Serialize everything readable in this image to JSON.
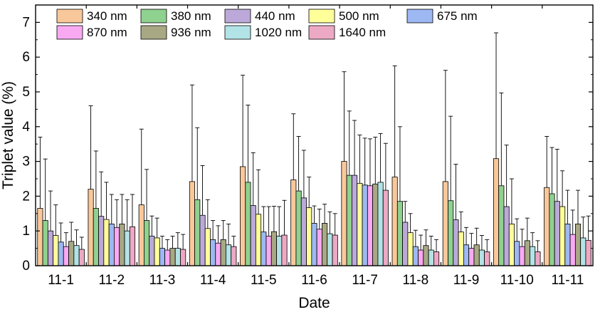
{
  "chart_data": {
    "type": "bar",
    "xlabel": "Date",
    "ylabel": "Triplet value (%)",
    "ylim": [
      0,
      7.5
    ],
    "yticks": [
      0,
      1,
      2,
      3,
      4,
      5,
      6,
      7
    ],
    "categories": [
      "11-1",
      "11-2",
      "11-3",
      "11-4",
      "11-5",
      "11-6",
      "11-7",
      "11-8",
      "11-9",
      "11-10",
      "11-11"
    ],
    "error_bars": "upper, one-sided",
    "legend_position": "top (inside plot area)",
    "series": [
      {
        "name": "340 nm",
        "color": "#F9C89A",
        "values": [
          1.65,
          2.2,
          1.75,
          2.42,
          2.85,
          2.47,
          3.0,
          2.55,
          2.42,
          3.08,
          2.25
        ],
        "errors": [
          2.05,
          2.4,
          2.18,
          2.78,
          2.63,
          1.9,
          2.58,
          3.2,
          3.2,
          3.62,
          1.47
        ]
      },
      {
        "name": "380 nm",
        "color": "#8FD18F",
        "values": [
          1.3,
          1.65,
          1.3,
          1.9,
          2.4,
          2.15,
          2.6,
          1.85,
          1.87,
          2.3,
          2.07
        ],
        "errors": [
          1.77,
          1.65,
          1.47,
          2.07,
          2.22,
          1.57,
          1.85,
          2.15,
          2.43,
          2.67,
          1.33
        ]
      },
      {
        "name": "440 nm",
        "color": "#BCA9D9",
        "values": [
          1.0,
          1.42,
          0.85,
          1.45,
          1.73,
          1.95,
          2.6,
          1.25,
          1.32,
          1.7,
          1.85
        ],
        "errors": [
          1.15,
          1.28,
          0.58,
          1.43,
          1.52,
          1.37,
          1.58,
          0.6,
          1.6,
          1.77,
          1.5
        ]
      },
      {
        "name": "500 nm",
        "color": "#FFFF99",
        "values": [
          0.87,
          1.33,
          0.8,
          1.07,
          1.48,
          1.67,
          2.37,
          0.95,
          0.97,
          1.2,
          1.7
        ],
        "errors": [
          0.88,
          1.07,
          0.57,
          0.83,
          1.28,
          0.88,
          1.39,
          0.55,
          0.58,
          1.3,
          1.03
        ]
      },
      {
        "name": "675 nm",
        "color": "#9DB8F2",
        "values": [
          0.68,
          1.2,
          0.5,
          0.75,
          0.97,
          1.22,
          2.32,
          0.55,
          0.6,
          0.7,
          1.2
        ],
        "errors": [
          0.55,
          0.85,
          0.35,
          0.55,
          0.73,
          0.5,
          1.35,
          0.47,
          0.5,
          0.65,
          0.97
        ]
      },
      {
        "name": "870 nm",
        "color": "#F9A9F2",
        "values": [
          0.55,
          1.1,
          0.45,
          0.65,
          0.85,
          1.05,
          2.3,
          0.45,
          0.5,
          0.55,
          0.9
        ],
        "errors": [
          0.4,
          0.8,
          0.3,
          0.5,
          0.85,
          0.58,
          1.35,
          0.43,
          0.43,
          0.5,
          0.7
        ]
      },
      {
        "name": "936 nm",
        "color": "#A8A884",
        "values": [
          0.7,
          1.2,
          0.5,
          0.75,
          0.98,
          1.22,
          2.35,
          0.58,
          0.6,
          0.72,
          1.2
        ],
        "errors": [
          0.55,
          0.85,
          0.35,
          0.55,
          0.73,
          0.55,
          1.35,
          0.45,
          0.48,
          0.65,
          0.97
        ]
      },
      {
        "name": "1020 nm",
        "color": "#B2E3E6",
        "values": [
          0.58,
          1.0,
          0.5,
          0.6,
          0.85,
          0.92,
          2.4,
          0.45,
          0.45,
          0.55,
          0.8
        ],
        "errors": [
          0.45,
          0.9,
          0.45,
          0.6,
          0.85,
          0.63,
          1.4,
          0.4,
          0.42,
          0.4,
          0.6
        ]
      },
      {
        "name": "1640 nm",
        "color": "#EDA9C4",
        "values": [
          0.47,
          1.12,
          0.47,
          0.55,
          0.88,
          0.88,
          2.17,
          0.4,
          0.4,
          0.4,
          0.73
        ],
        "errors": [
          0.35,
          0.93,
          0.43,
          0.3,
          1.0,
          0.62,
          1.35,
          0.35,
          0.35,
          0.32,
          0.7
        ]
      }
    ]
  }
}
